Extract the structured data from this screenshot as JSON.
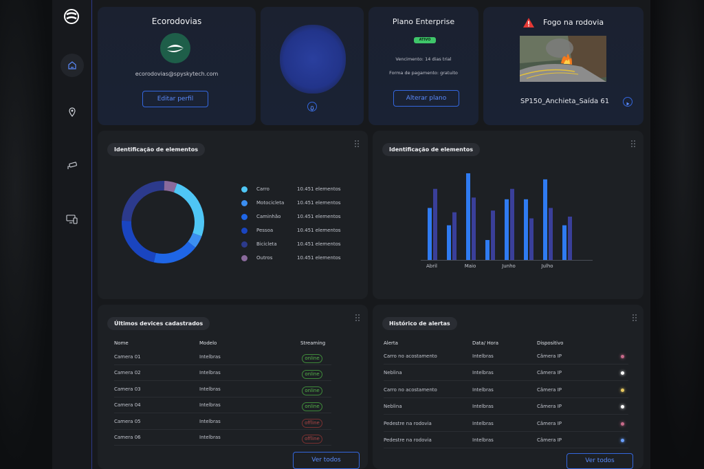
{
  "profile": {
    "company": "Ecorodovias",
    "email": "ecorodovias@spyskytech.com",
    "edit_label": "Editar perfil"
  },
  "plan": {
    "title": "Plano Enterprise",
    "badge": "ATIVO",
    "expiry": "Vencimento: 14 dias trial",
    "payment": "Forma de pagamento: gratuito",
    "change_label": "Alterar plano"
  },
  "alert_card": {
    "title": "Fogo na rodovia",
    "camera": "SP150_Anchieta_Saída 61"
  },
  "colors": {
    "accent": "#3468e0",
    "online": "#55b34a",
    "offline": "#b04646"
  },
  "donut": {
    "title": "Identificação de elementos",
    "items": [
      {
        "label": "Carro",
        "value": "10.451 elementos",
        "color": "#4fc6f5",
        "share": 0.25
      },
      {
        "label": "Motocicleta",
        "value": "10.451 elementos",
        "color": "#3b8ef0",
        "share": 0.05
      },
      {
        "label": "Caminhão",
        "value": "10.451 elementos",
        "color": "#1f66e6",
        "share": 0.18
      },
      {
        "label": "Pessoa",
        "value": "10.451 elementos",
        "color": "#1a45c0",
        "share": 0.22
      },
      {
        "label": "Bicicleta",
        "value": "10.451 elementos",
        "color": "#2c3a8c",
        "share": 0.25
      },
      {
        "label": "Outros",
        "value": "10.451 elementos",
        "color": "#8a6a9c",
        "share": 0.05
      }
    ]
  },
  "chart_data": {
    "type": "bar",
    "title": "Identificação de elementos",
    "categories": [
      "Abril",
      "Maio",
      "Junho",
      "Julho"
    ],
    "series": [
      {
        "color": "#2f7bf2",
        "values": [
          [
            60,
            40
          ],
          [
            100,
            23
          ],
          [
            70,
            70
          ],
          [
            93,
            40
          ]
        ]
      },
      {
        "color": "#3a3f9a",
        "values": [
          [
            82,
            55
          ],
          [
            72,
            57
          ],
          [
            82,
            48
          ],
          [
            60,
            50
          ]
        ]
      }
    ],
    "ylim": [
      0,
      100
    ],
    "grid": false,
    "legend": "none"
  },
  "devices": {
    "title": "Últimos devices cadastrados",
    "columns": [
      "Nome",
      "Modelo",
      "Streaming"
    ],
    "rows": [
      {
        "name": "Camera 01",
        "model": "Intelbras",
        "status": "online"
      },
      {
        "name": "Camera 02",
        "model": "Intelbras",
        "status": "online"
      },
      {
        "name": "Camera 03",
        "model": "Intelbras",
        "status": "online"
      },
      {
        "name": "Camera 04",
        "model": "Intelbras",
        "status": "online"
      },
      {
        "name": "Camera 05",
        "model": "Intelbras",
        "status": "offline"
      },
      {
        "name": "Camera 06",
        "model": "Intelbras",
        "status": "offline"
      }
    ],
    "see_all": "Ver todos"
  },
  "alerts": {
    "title": "Histórico de alertas",
    "columns": [
      "Alerta",
      "Data/ Hora",
      "Dispositivo"
    ],
    "rows": [
      {
        "alert": "Carro no acostamento",
        "date": "Intelbras",
        "device": "Câmera IP",
        "dot": "#c86a8a"
      },
      {
        "alert": "Neblina",
        "date": "Intelbras",
        "device": "Câmera IP",
        "dot": "#ffffff"
      },
      {
        "alert": "Carro no acostamento",
        "date": "Intelbras",
        "device": "Câmera IP",
        "dot": "#e8c860"
      },
      {
        "alert": "Neblina",
        "date": "Intelbras",
        "device": "Câmera IP",
        "dot": "#ffffff"
      },
      {
        "alert": "Pedestre na rodovia",
        "date": "Intelbras",
        "device": "Câmera IP",
        "dot": "#c86a8a"
      },
      {
        "alert": "Pedestre na rodovia",
        "date": "Intelbras",
        "device": "Câmera IP",
        "dot": "#6aa0ff"
      }
    ],
    "see_all": "Ver todos"
  }
}
